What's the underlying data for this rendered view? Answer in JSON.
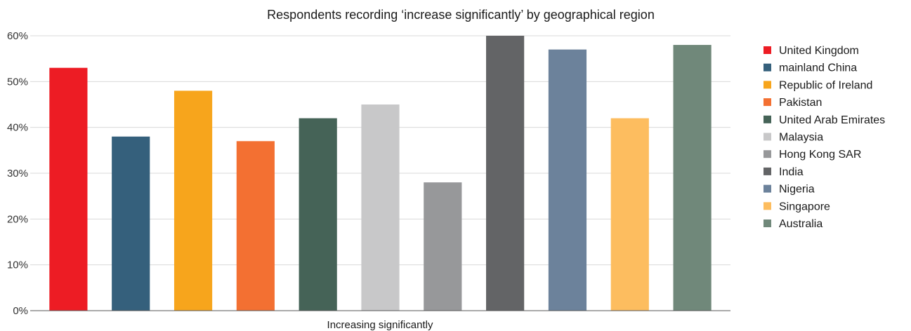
{
  "chart_data": {
    "type": "bar",
    "title": "Respondents recording ‘increase significantly’ by geographical region",
    "xlabel": "Increasing significantly",
    "ylabel": "",
    "ylim": [
      0,
      60
    ],
    "yticks": [
      "0%",
      "10%",
      "20%",
      "30%",
      "40%",
      "50%",
      "60%"
    ],
    "grid": true,
    "legend_position": "right",
    "series": [
      {
        "name": "United Kingdom",
        "value": 53,
        "color": "#ed1c24"
      },
      {
        "name": "mainland China",
        "value": 38,
        "color": "#35607c"
      },
      {
        "name": "Republic of Ireland",
        "value": 48,
        "color": "#f7a51c"
      },
      {
        "name": "Pakistan",
        "value": 37,
        "color": "#f37032"
      },
      {
        "name": "United Arab Emirates",
        "value": 42,
        "color": "#456357"
      },
      {
        "name": "Malaysia",
        "value": 45,
        "color": "#c8c8c9"
      },
      {
        "name": "Hong Kong SAR",
        "value": 28,
        "color": "#97989a"
      },
      {
        "name": "India",
        "value": 60,
        "color": "#636466"
      },
      {
        "name": "Nigeria",
        "value": 57,
        "color": "#6c829b"
      },
      {
        "name": "Singapore",
        "value": 42,
        "color": "#fdbd5f"
      },
      {
        "name": "Australia",
        "value": 58,
        "color": "#70887a"
      }
    ]
  }
}
